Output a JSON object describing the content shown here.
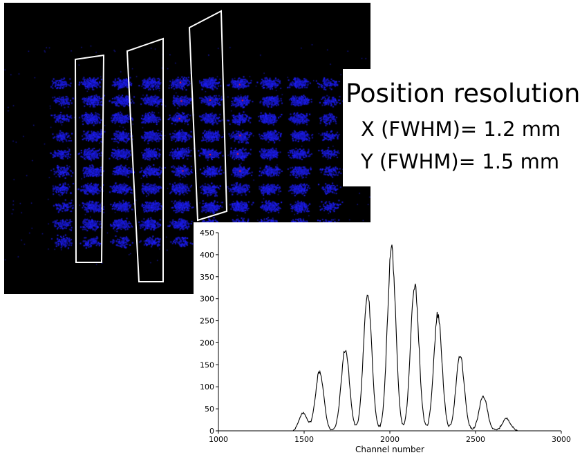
{
  "flood_map": {
    "background": "#000000",
    "spot_color": "#2a2aff",
    "hot_color": "#ff2020",
    "grid_rows": 10,
    "grid_cols": 10,
    "roi_outline_color": "#ffffff",
    "roi_count": 3
  },
  "resolution_box": {
    "title": "Position resolution:",
    "x_line": "X (FWHM)= 1.2 mm",
    "y_line": "Y (FWHM)= 1.5 mm"
  },
  "chart_data": {
    "type": "line",
    "title": "",
    "xlabel": "Channel number",
    "ylabel": "",
    "xlim": [
      1000,
      3000
    ],
    "ylim": [
      0,
      450
    ],
    "x_ticks": [
      1000,
      1500,
      2000,
      2500,
      3000
    ],
    "y_ticks": [
      0,
      50,
      100,
      150,
      200,
      250,
      300,
      350,
      400,
      450
    ],
    "grid": false,
    "series": [
      {
        "color": "#000000",
        "peaks": [
          {
            "x": 1495,
            "y": 40
          },
          {
            "x": 1590,
            "y": 135
          },
          {
            "x": 1740,
            "y": 185
          },
          {
            "x": 1870,
            "y": 310
          },
          {
            "x": 2010,
            "y": 415
          },
          {
            "x": 2145,
            "y": 335
          },
          {
            "x": 2280,
            "y": 265
          },
          {
            "x": 2410,
            "y": 170
          },
          {
            "x": 2545,
            "y": 78
          },
          {
            "x": 2680,
            "y": 28
          }
        ],
        "range": [
          1440,
          2740
        ]
      }
    ]
  }
}
